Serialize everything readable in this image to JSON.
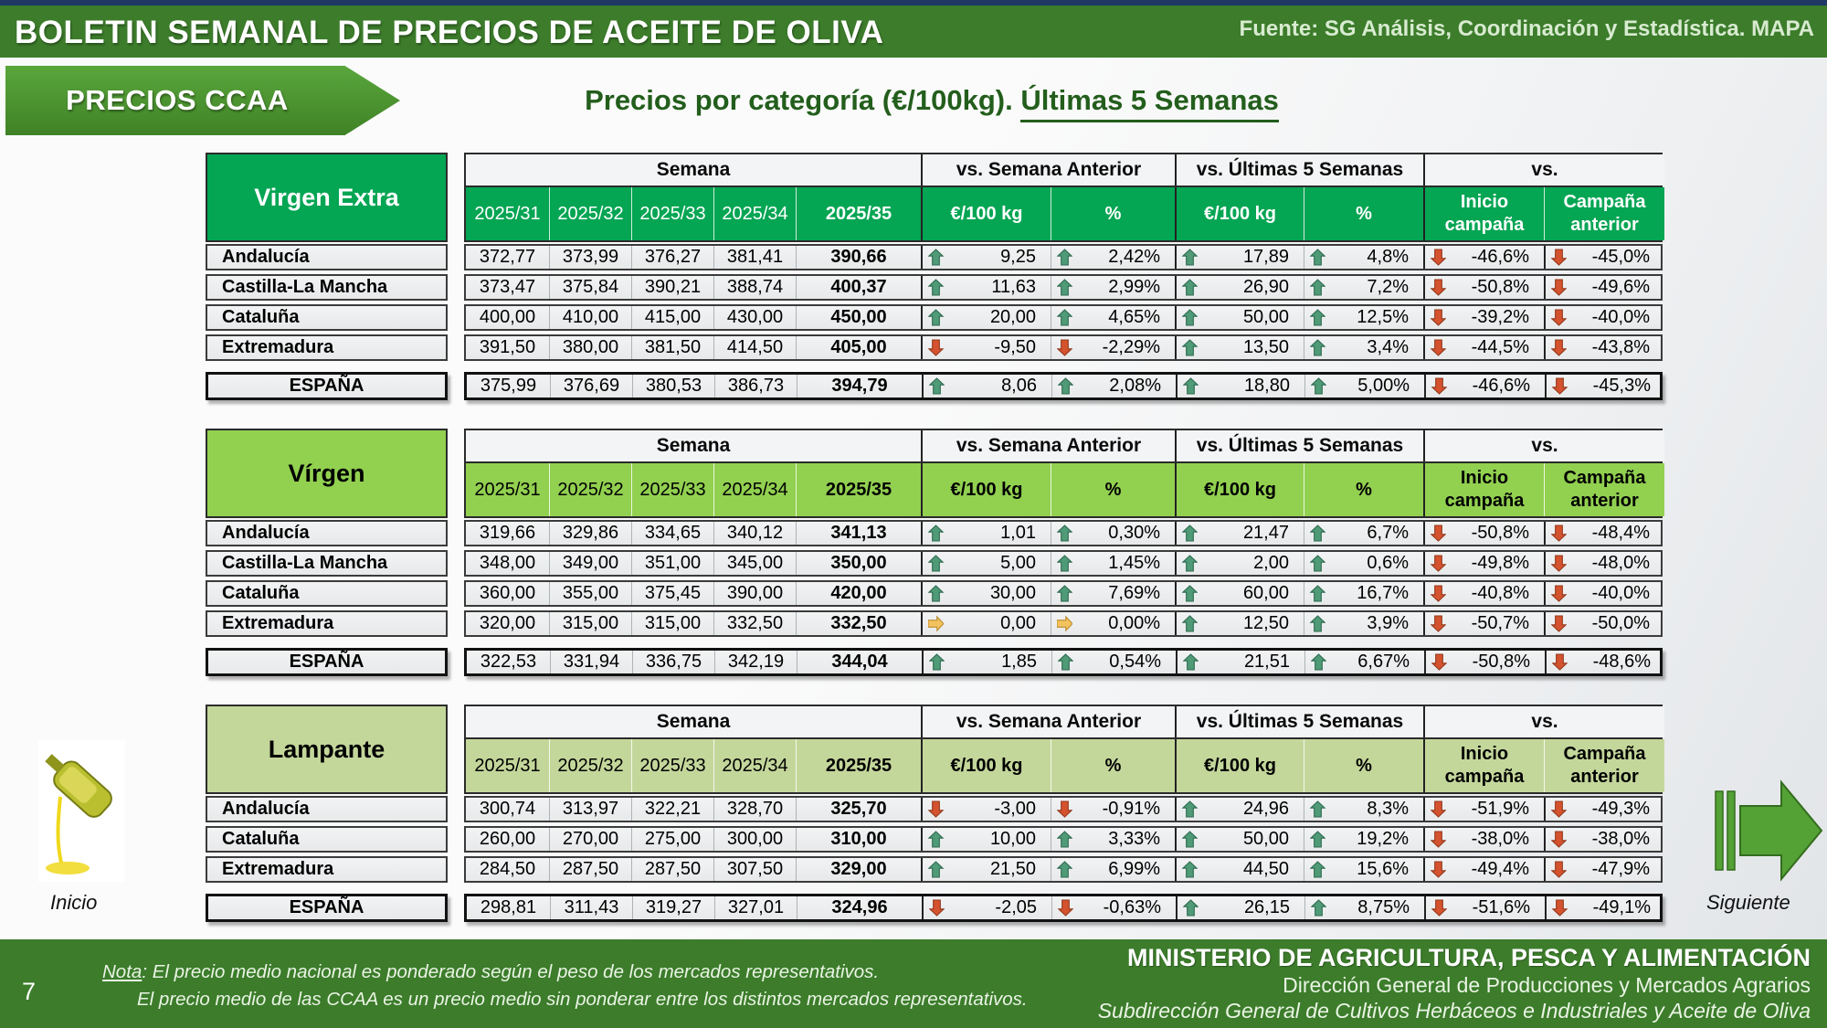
{
  "header": {
    "title": "BOLETIN SEMANAL DE PRECIOS DE ACEITE DE OLIVA",
    "source": "Fuente: SG Análisis, Coordinación y Estadística. MAPA"
  },
  "tab": {
    "label": "PRECIOS CCAA"
  },
  "page_title": {
    "main": "Precios por categoría (€/100kg). ",
    "underlined": "Últimas 5 Semanas"
  },
  "columns": {
    "group_headers": [
      "Semana",
      "vs. Semana Anterior",
      "vs. Últimas 5 Semanas",
      "vs."
    ],
    "week_headers": [
      "2025/31",
      "2025/32",
      "2025/33",
      "2025/34",
      "2025/35"
    ],
    "unit_eur": "€/100 kg",
    "unit_pct": "%",
    "inicio_line1": "Inicio",
    "inicio_line2": "campaña",
    "campana_line1": "Campaña",
    "campana_line2": "anterior"
  },
  "colors": {
    "topbar_green": "#3c7c2b",
    "navy_strip": "#1f3864",
    "title_green": "#235e1c",
    "arrow_up": {
      "fill": "#4f9a77",
      "stroke": "#2f6b50"
    },
    "arrow_down": {
      "fill": "#d4532e",
      "stroke": "#93381c"
    },
    "arrow_flat": {
      "fill": "#f2c25e",
      "stroke": "#bb8c2f"
    },
    "next_arrow_green": "#54a136"
  },
  "tables": [
    {
      "category": "Virgen Extra",
      "colors": {
        "header_bg": "#04a553",
        "header_text": "#ffffff"
      },
      "rows": [
        {
          "region": "Andalucía",
          "weeks": [
            "372,77",
            "373,99",
            "376,27",
            "381,41",
            "390,66"
          ],
          "cells": [
            {
              "dir": "up",
              "value": "9,25"
            },
            {
              "dir": "up",
              "value": "2,42%"
            },
            {
              "dir": "up",
              "value": "17,89"
            },
            {
              "dir": "up",
              "value": "4,8%"
            },
            {
              "dir": "down",
              "value": "-46,6%"
            },
            {
              "dir": "down",
              "value": "-45,0%"
            }
          ]
        },
        {
          "region": "Castilla-La Mancha",
          "weeks": [
            "373,47",
            "375,84",
            "390,21",
            "388,74",
            "400,37"
          ],
          "cells": [
            {
              "dir": "up",
              "value": "11,63"
            },
            {
              "dir": "up",
              "value": "2,99%"
            },
            {
              "dir": "up",
              "value": "26,90"
            },
            {
              "dir": "up",
              "value": "7,2%"
            },
            {
              "dir": "down",
              "value": "-50,8%"
            },
            {
              "dir": "down",
              "value": "-49,6%"
            }
          ]
        },
        {
          "region": "Cataluña",
          "weeks": [
            "400,00",
            "410,00",
            "415,00",
            "430,00",
            "450,00"
          ],
          "cells": [
            {
              "dir": "up",
              "value": "20,00"
            },
            {
              "dir": "up",
              "value": "4,65%"
            },
            {
              "dir": "up",
              "value": "50,00"
            },
            {
              "dir": "up",
              "value": "12,5%"
            },
            {
              "dir": "down",
              "value": "-39,2%"
            },
            {
              "dir": "down",
              "value": "-40,0%"
            }
          ]
        },
        {
          "region": "Extremadura",
          "weeks": [
            "391,50",
            "380,00",
            "381,50",
            "414,50",
            "405,00"
          ],
          "cells": [
            {
              "dir": "down",
              "value": "-9,50"
            },
            {
              "dir": "down",
              "value": "-2,29%"
            },
            {
              "dir": "up",
              "value": "13,50"
            },
            {
              "dir": "up",
              "value": "3,4%"
            },
            {
              "dir": "down",
              "value": "-44,5%"
            },
            {
              "dir": "down",
              "value": "-43,8%"
            }
          ]
        }
      ],
      "espana": {
        "label": "ESPAÑA",
        "weeks": [
          "375,99",
          "376,69",
          "380,53",
          "386,73",
          "394,79"
        ],
        "cells": [
          {
            "dir": "up",
            "value": "8,06"
          },
          {
            "dir": "up",
            "value": "2,08%"
          },
          {
            "dir": "up",
            "value": "18,80"
          },
          {
            "dir": "up",
            "value": "5,00%"
          },
          {
            "dir": "down",
            "value": "-46,6%"
          },
          {
            "dir": "down",
            "value": "-45,3%"
          }
        ]
      }
    },
    {
      "category": "Vírgen",
      "colors": {
        "header_bg": "#92d050",
        "header_text": "#000000"
      },
      "rows": [
        {
          "region": "Andalucía",
          "weeks": [
            "319,66",
            "329,86",
            "334,65",
            "340,12",
            "341,13"
          ],
          "cells": [
            {
              "dir": "up",
              "value": "1,01"
            },
            {
              "dir": "up",
              "value": "0,30%"
            },
            {
              "dir": "up",
              "value": "21,47"
            },
            {
              "dir": "up",
              "value": "6,7%"
            },
            {
              "dir": "down",
              "value": "-50,8%"
            },
            {
              "dir": "down",
              "value": "-48,4%"
            }
          ]
        },
        {
          "region": "Castilla-La Mancha",
          "weeks": [
            "348,00",
            "349,00",
            "351,00",
            "345,00",
            "350,00"
          ],
          "cells": [
            {
              "dir": "up",
              "value": "5,00"
            },
            {
              "dir": "up",
              "value": "1,45%"
            },
            {
              "dir": "up",
              "value": "2,00"
            },
            {
              "dir": "up",
              "value": "0,6%"
            },
            {
              "dir": "down",
              "value": "-49,8%"
            },
            {
              "dir": "down",
              "value": "-48,0%"
            }
          ]
        },
        {
          "region": "Cataluña",
          "weeks": [
            "360,00",
            "355,00",
            "375,45",
            "390,00",
            "420,00"
          ],
          "cells": [
            {
              "dir": "up",
              "value": "30,00"
            },
            {
              "dir": "up",
              "value": "7,69%"
            },
            {
              "dir": "up",
              "value": "60,00"
            },
            {
              "dir": "up",
              "value": "16,7%"
            },
            {
              "dir": "down",
              "value": "-40,8%"
            },
            {
              "dir": "down",
              "value": "-40,0%"
            }
          ]
        },
        {
          "region": "Extremadura",
          "weeks": [
            "320,00",
            "315,00",
            "315,00",
            "332,50",
            "332,50"
          ],
          "cells": [
            {
              "dir": "flat",
              "value": "0,00"
            },
            {
              "dir": "flat",
              "value": "0,00%"
            },
            {
              "dir": "up",
              "value": "12,50"
            },
            {
              "dir": "up",
              "value": "3,9%"
            },
            {
              "dir": "down",
              "value": "-50,7%"
            },
            {
              "dir": "down",
              "value": "-50,0%"
            }
          ]
        }
      ],
      "espana": {
        "label": "ESPAÑA",
        "weeks": [
          "322,53",
          "331,94",
          "336,75",
          "342,19",
          "344,04"
        ],
        "cells": [
          {
            "dir": "up",
            "value": "1,85"
          },
          {
            "dir": "up",
            "value": "0,54%"
          },
          {
            "dir": "up",
            "value": "21,51"
          },
          {
            "dir": "up",
            "value": "6,67%"
          },
          {
            "dir": "down",
            "value": "-50,8%"
          },
          {
            "dir": "down",
            "value": "-48,6%"
          }
        ]
      }
    },
    {
      "category": "Lampante",
      "colors": {
        "header_bg": "#c4d79b",
        "header_text": "#000000"
      },
      "rows": [
        {
          "region": "Andalucía",
          "weeks": [
            "300,74",
            "313,97",
            "322,21",
            "328,70",
            "325,70"
          ],
          "cells": [
            {
              "dir": "down",
              "value": "-3,00"
            },
            {
              "dir": "down",
              "value": "-0,91%"
            },
            {
              "dir": "up",
              "value": "24,96"
            },
            {
              "dir": "up",
              "value": "8,3%"
            },
            {
              "dir": "down",
              "value": "-51,9%"
            },
            {
              "dir": "down",
              "value": "-49,3%"
            }
          ]
        },
        {
          "region": "Cataluña",
          "weeks": [
            "260,00",
            "270,00",
            "275,00",
            "300,00",
            "310,00"
          ],
          "cells": [
            {
              "dir": "up",
              "value": "10,00"
            },
            {
              "dir": "up",
              "value": "3,33%"
            },
            {
              "dir": "up",
              "value": "50,00"
            },
            {
              "dir": "up",
              "value": "19,2%"
            },
            {
              "dir": "down",
              "value": "-38,0%"
            },
            {
              "dir": "down",
              "value": "-38,0%"
            }
          ]
        },
        {
          "region": "Extremadura",
          "weeks": [
            "284,50",
            "287,50",
            "287,50",
            "307,50",
            "329,00"
          ],
          "cells": [
            {
              "dir": "up",
              "value": "21,50"
            },
            {
              "dir": "up",
              "value": "6,99%"
            },
            {
              "dir": "up",
              "value": "44,50"
            },
            {
              "dir": "up",
              "value": "15,6%"
            },
            {
              "dir": "down",
              "value": "-49,4%"
            },
            {
              "dir": "down",
              "value": "-47,9%"
            }
          ]
        }
      ],
      "espana": {
        "label": "ESPAÑA",
        "weeks": [
          "298,81",
          "311,43",
          "319,27",
          "327,01",
          "324,96"
        ],
        "cells": [
          {
            "dir": "down",
            "value": "-2,05"
          },
          {
            "dir": "down",
            "value": "-0,63%"
          },
          {
            "dir": "up",
            "value": "26,15"
          },
          {
            "dir": "up",
            "value": "8,75%"
          },
          {
            "dir": "down",
            "value": "-51,6%"
          },
          {
            "dir": "down",
            "value": "-49,1%"
          }
        ]
      }
    }
  ],
  "nav": {
    "inicio": "Inicio",
    "siguiente": "Siguiente"
  },
  "footer": {
    "page_number": "7",
    "note_label": "Nota",
    "note1_rest": ": El precio medio nacional es ponderado según el peso de los mercados representativos.",
    "note2": "El precio medio de las CCAA es un precio medio sin ponderar entre los distintos mercados representativos.",
    "org1": "MINISTERIO DE AGRICULTURA, PESCA Y ALIMENTACIÓN",
    "org2": "Dirección General de Producciones y Mercados Agrarios",
    "org3": "Subdirección General de Cultivos Herbáceos e Industriales y Aceite de Oliva"
  }
}
